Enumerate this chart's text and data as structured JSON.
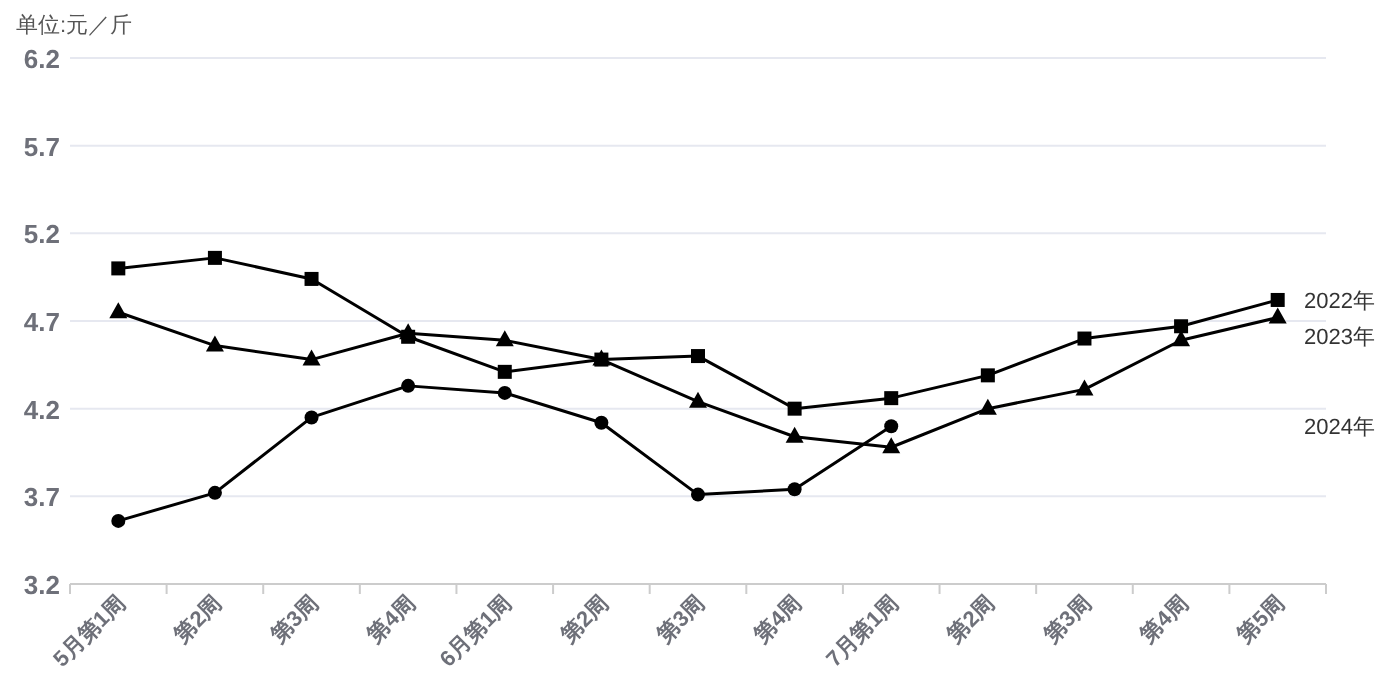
{
  "chart_data": {
    "type": "line",
    "ylabel": "单位:元／斤",
    "categories": [
      "5月第1周",
      "第2周",
      "第3周",
      "第4周",
      "6月第1周",
      "第2周",
      "第3周",
      "第4周",
      "7月第1周",
      "第2周",
      "第3周",
      "第4周",
      "第5周"
    ],
    "series": [
      {
        "name": "2022年",
        "color": "#000000",
        "marker": "square",
        "values": [
          5.0,
          5.06,
          4.94,
          4.61,
          4.41,
          4.48,
          4.5,
          4.2,
          4.26,
          4.39,
          4.6,
          4.67,
          4.82
        ]
      },
      {
        "name": "2023年",
        "color": "#000000",
        "marker": "triangle",
        "values": [
          4.75,
          4.56,
          4.48,
          4.63,
          4.59,
          4.48,
          4.24,
          4.04,
          3.98,
          4.2,
          4.31,
          4.59,
          4.72
        ]
      },
      {
        "name": "2024年",
        "color": "#000000",
        "marker": "circle",
        "values": [
          3.56,
          3.72,
          4.15,
          4.33,
          4.29,
          4.12,
          3.71,
          3.74,
          4.1,
          null,
          null,
          null,
          null
        ]
      }
    ],
    "ylim": [
      3.2,
      6.2
    ],
    "yticks": [
      3.2,
      3.7,
      4.2,
      4.7,
      5.2,
      5.7,
      6.2
    ],
    "grid": "y",
    "legend": false,
    "line_style": "solid"
  }
}
